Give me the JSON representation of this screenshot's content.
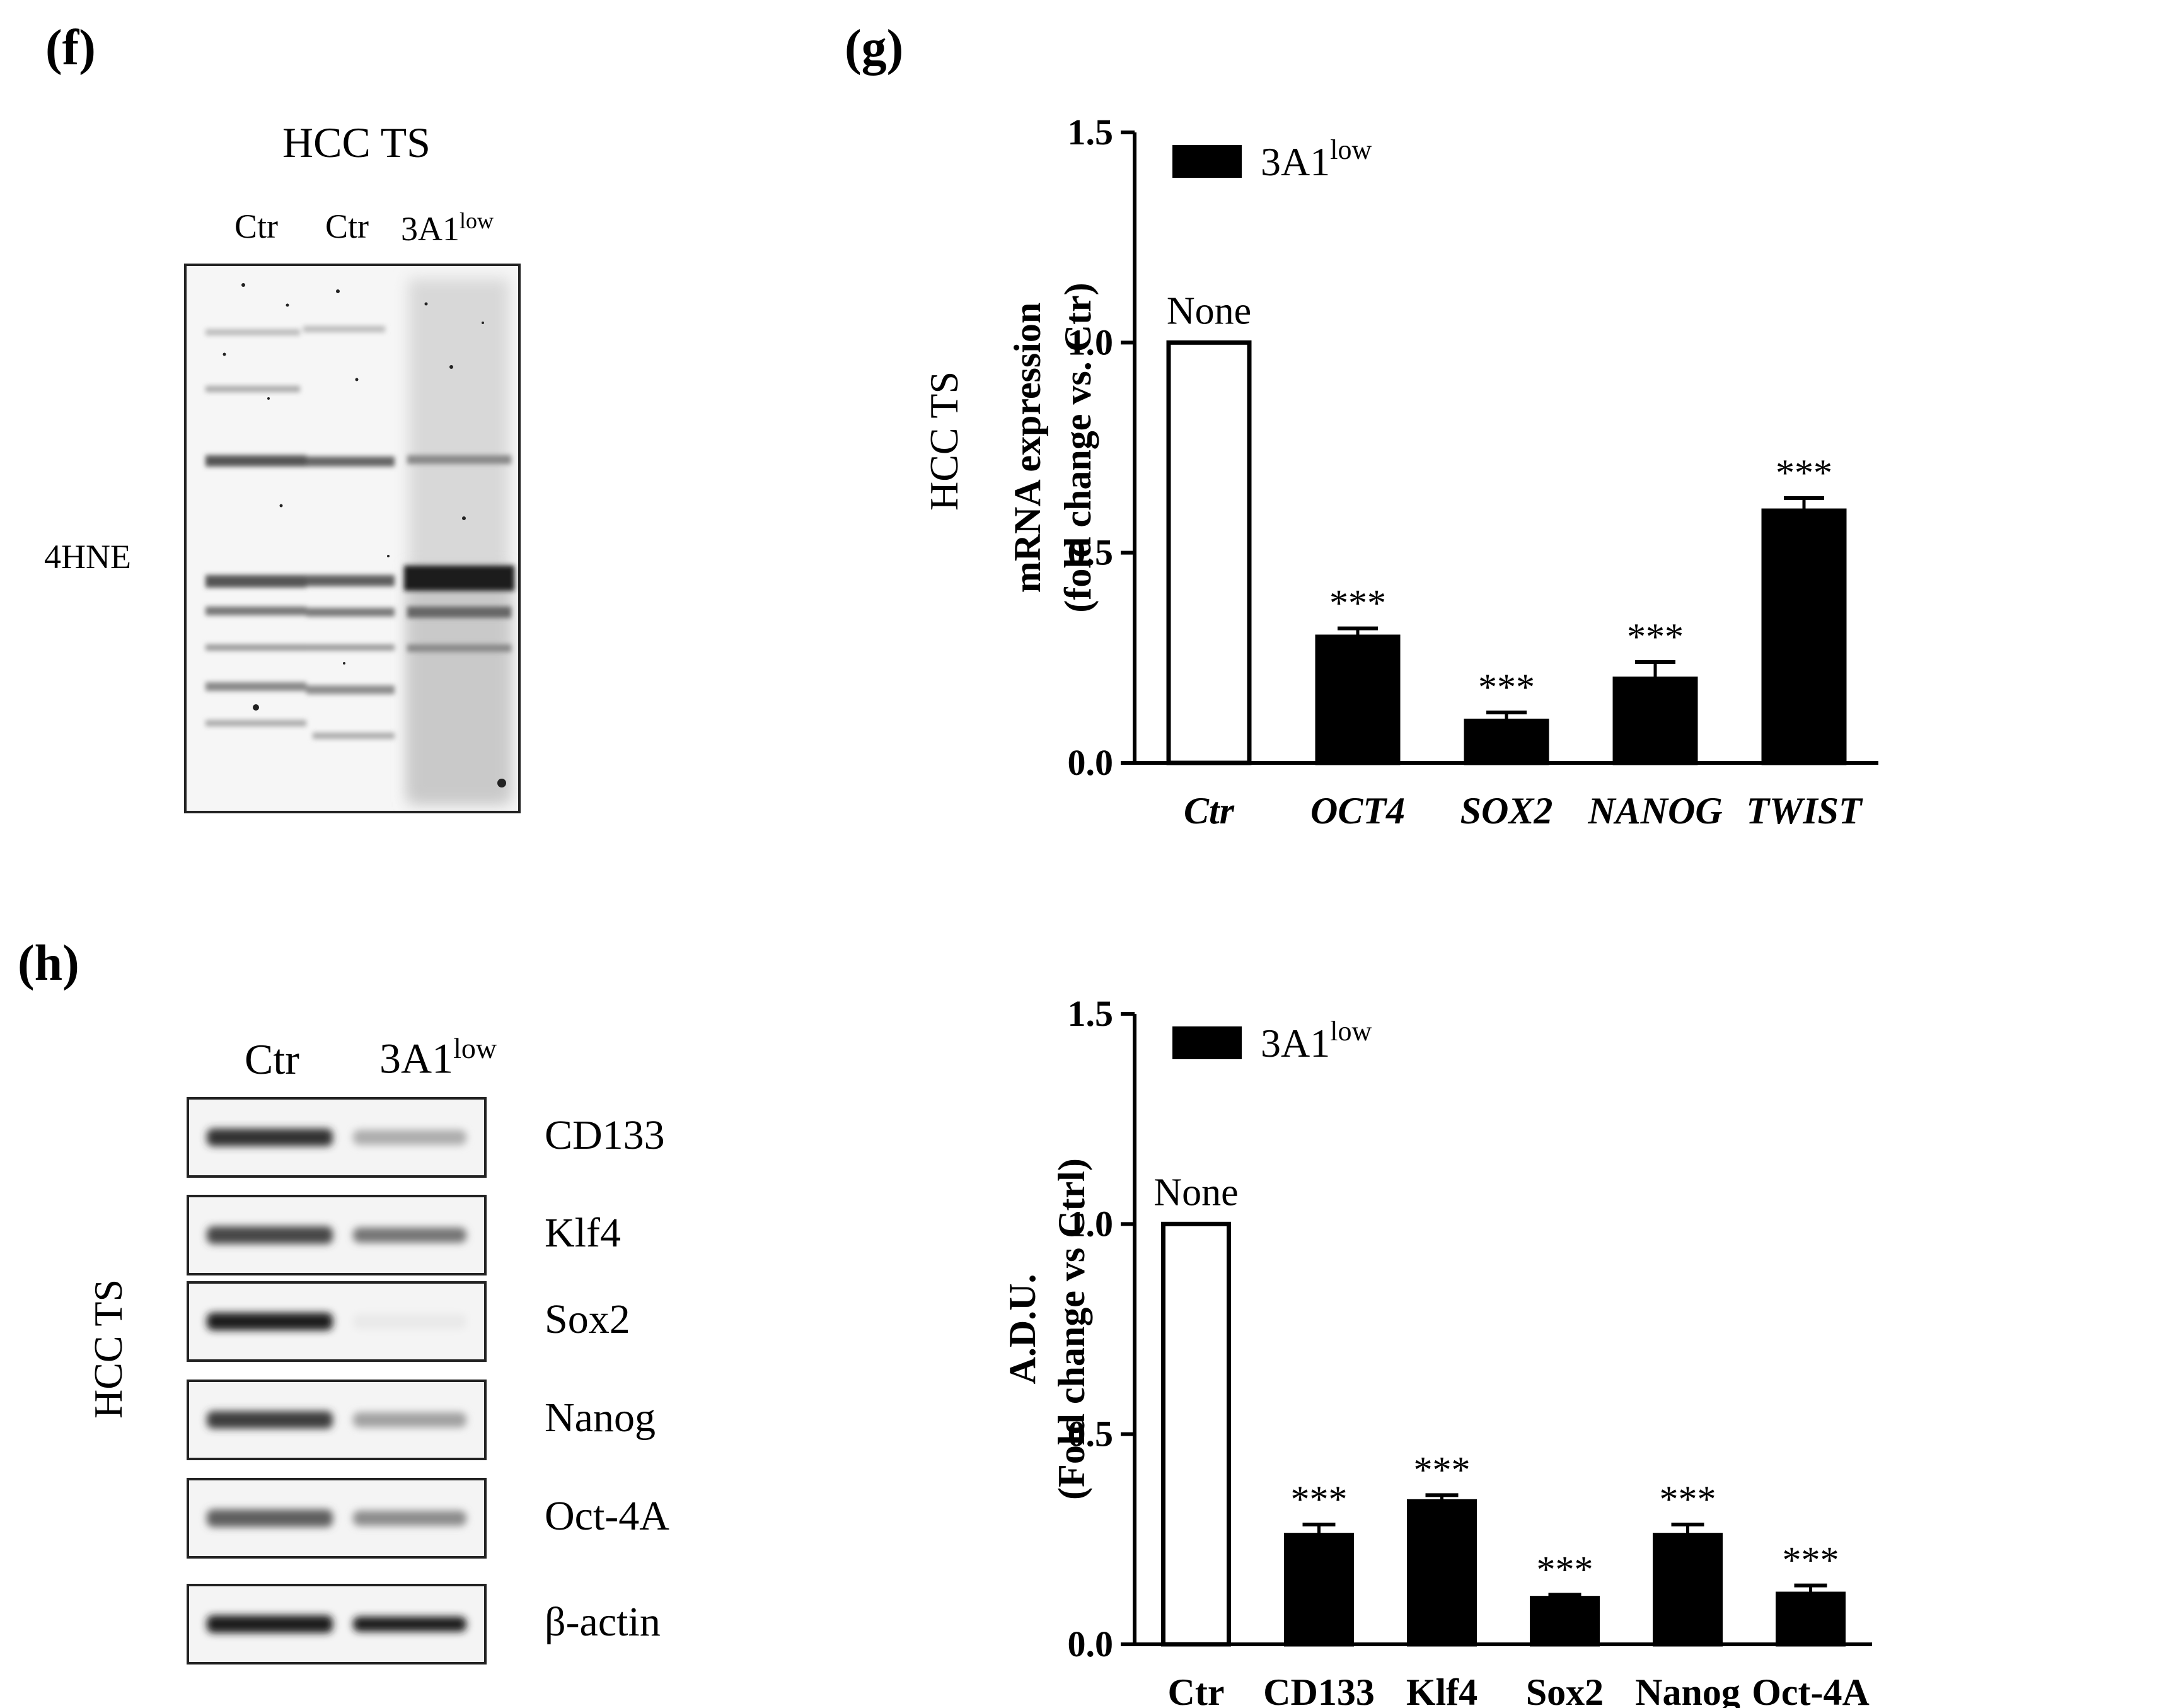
{
  "panels": {
    "f": {
      "letter": "(f)",
      "title": "HCC TS",
      "lanes": [
        {
          "text": "Ctr",
          "sup": ""
        },
        {
          "text": "Ctr",
          "sup": ""
        },
        {
          "text": "3A1",
          "sup": "low"
        }
      ],
      "row_label": "4HNE"
    },
    "g": {
      "letter": "(g)",
      "side_label": "HCC TS"
    },
    "h": {
      "letter": "(h)",
      "side_label": "HCC TS",
      "lanes": [
        {
          "text": "Ctr",
          "sup": ""
        },
        {
          "text": "3A1",
          "sup": "low"
        }
      ],
      "rows": [
        {
          "label": "CD133",
          "ctr": 0.85,
          "treated": 0.3
        },
        {
          "label": "Klf4",
          "ctr": 0.75,
          "treated": 0.55
        },
        {
          "label": "Sox2",
          "ctr": 0.95,
          "treated": 0.03
        },
        {
          "label": "Nanog",
          "ctr": 0.8,
          "treated": 0.35
        },
        {
          "label": "Oct-4A",
          "ctr": 0.65,
          "treated": 0.45
        },
        {
          "label": "β-actin",
          "ctr": 0.95,
          "treated": 0.95
        }
      ]
    }
  },
  "chart_data": [
    {
      "type": "bar",
      "ylabel_line1": "mRNA expression",
      "ylabel_line2": "(fold change vs. Ctr)",
      "ylim": [
        0,
        1.5
      ],
      "yticks": [
        "0.0",
        "0.5",
        "1.0",
        "1.5"
      ],
      "ytick_values": [
        0,
        0.5,
        1.0,
        1.5
      ],
      "legend": {
        "text": "3A1",
        "sup": "low",
        "position": "top-left"
      },
      "categories": [
        "Ctr",
        "OCT4",
        "SOX2",
        "NANOG",
        "TWIST"
      ],
      "values": [
        1.0,
        0.3,
        0.1,
        0.2,
        0.6
      ],
      "errors": [
        0,
        0.02,
        0.02,
        0.04,
        0.03
      ],
      "bar_fill": [
        "#ffffff",
        "#000000",
        "#000000",
        "#000000",
        "#000000"
      ],
      "annotations": [
        "None",
        "***",
        "***",
        "***",
        "***"
      ],
      "italic_categories": true
    },
    {
      "type": "bar",
      "ylabel_line1": "A.D.U.",
      "ylabel_line2": "(Fold change vs Ctrl)",
      "ylim": [
        0,
        1.5
      ],
      "yticks": [
        "0.0",
        "0.5",
        "1.0",
        "1.5"
      ],
      "ytick_values": [
        0,
        0.5,
        1.0,
        1.5
      ],
      "legend": {
        "text": "3A1",
        "sup": "low",
        "position": "top-left"
      },
      "categories": [
        "Ctr",
        "CD133",
        "Klf4",
        "Sox2",
        "Nanog",
        "Oct-4A"
      ],
      "values": [
        1.0,
        0.26,
        0.34,
        0.11,
        0.26,
        0.12
      ],
      "errors": [
        0,
        0.025,
        0.015,
        0.008,
        0.025,
        0.02
      ],
      "bar_fill": [
        "#ffffff",
        "#000000",
        "#000000",
        "#000000",
        "#000000",
        "#000000"
      ],
      "annotations": [
        "None",
        "***",
        "***",
        "***",
        "***",
        "***"
      ],
      "italic_categories": false
    }
  ]
}
